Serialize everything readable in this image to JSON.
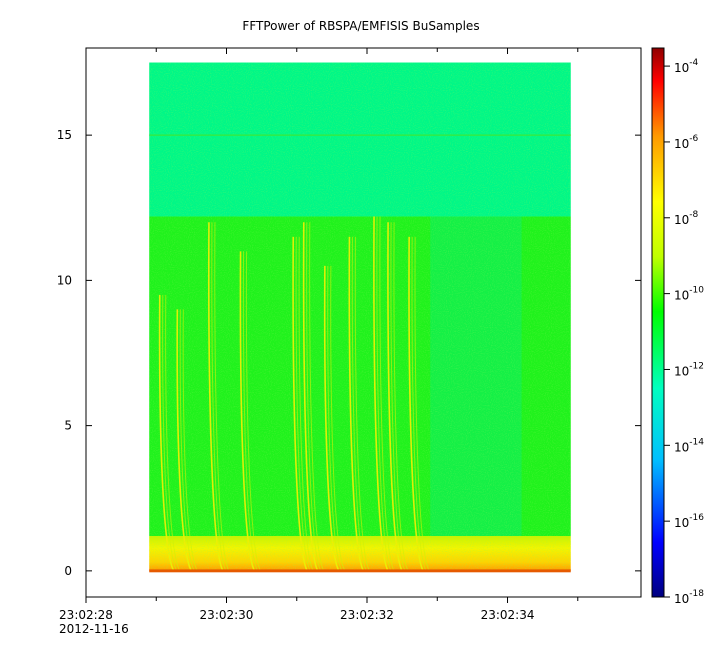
{
  "chart_data": {
    "type": "heatmap",
    "title": "FFTPower of RBSPA/EMFISIS  BuSamples",
    "xlabel": "",
    "ylabel": "",
    "x_range": [
      "23:02:28",
      "23:02:35.9"
    ],
    "data_x_range": [
      "23:02:28.9",
      "23:02:34.9"
    ],
    "x_ticks": [
      {
        "value": "23:02:28",
        "label": "23:02:28",
        "sublabel": "2012-11-16"
      },
      {
        "value": "23:02:30",
        "label": "23:02:30",
        "sublabel": ""
      },
      {
        "value": "23:02:32",
        "label": "23:02:32",
        "sublabel": ""
      },
      {
        "value": "23:02:34",
        "label": "23:02:34",
        "sublabel": ""
      }
    ],
    "x_minor_ticks": [
      "23:02:29",
      "23:02:31",
      "23:02:33",
      "23:02:35"
    ],
    "ylim": [
      -0.9,
      18.0
    ],
    "data_y_range": [
      0,
      17.5
    ],
    "y_ticks": [
      0,
      5,
      10,
      15
    ],
    "colorbar": {
      "scale": "log",
      "range": [
        1e-18,
        0.0003
      ],
      "ticks": [
        {
          "value": 0.0001,
          "base": "10",
          "exp": "-4"
        },
        {
          "value": 1e-06,
          "base": "10",
          "exp": "-6"
        },
        {
          "value": 1e-08,
          "base": "10",
          "exp": "-8"
        },
        {
          "value": 1e-10,
          "base": "10",
          "exp": "-10"
        },
        {
          "value": 1e-12,
          "base": "10",
          "exp": "-12"
        },
        {
          "value": 1e-14,
          "base": "10",
          "exp": "-14"
        },
        {
          "value": 1e-16,
          "base": "10",
          "exp": "-16"
        },
        {
          "value": 1e-18,
          "base": "10",
          "exp": "-18"
        }
      ],
      "colormap": "rainbow",
      "colors": [
        "#00007f",
        "#0000ff",
        "#00bfff",
        "#00ffc0",
        "#00ff00",
        "#c0ff00",
        "#ffff00",
        "#ff9900",
        "#ff0000",
        "#8f0000"
      ]
    },
    "features": {
      "upper_band_y": [
        12.2,
        17.5
      ],
      "upper_band_level": 1e-12,
      "mid_band_y": [
        1.2,
        12.2
      ],
      "mid_band_level": 1e-10,
      "low_band_y": [
        0,
        1.2
      ],
      "low_band_level": 1e-08,
      "horizontal_line_y": 15.0,
      "quiet_region_x": [
        "23:02:32.9",
        "23:02:34.2"
      ],
      "quiet_region_ymax": 12.2,
      "bursts": [
        {
          "t": "23:02:29.05",
          "top": 9.5
        },
        {
          "t": "23:02:29.30",
          "top": 9.0
        },
        {
          "t": "23:02:29.75",
          "top": 12.0
        },
        {
          "t": "23:02:30.20",
          "top": 11.0
        },
        {
          "t": "23:02:30.95",
          "top": 11.5
        },
        {
          "t": "23:02:31.10",
          "top": 12.0
        },
        {
          "t": "23:02:31.40",
          "top": 10.5
        },
        {
          "t": "23:02:31.75",
          "top": 11.5
        },
        {
          "t": "23:02:32.10",
          "top": 12.2
        },
        {
          "t": "23:02:32.30",
          "top": 12.0
        },
        {
          "t": "23:02:32.60",
          "top": 11.5
        }
      ]
    }
  }
}
